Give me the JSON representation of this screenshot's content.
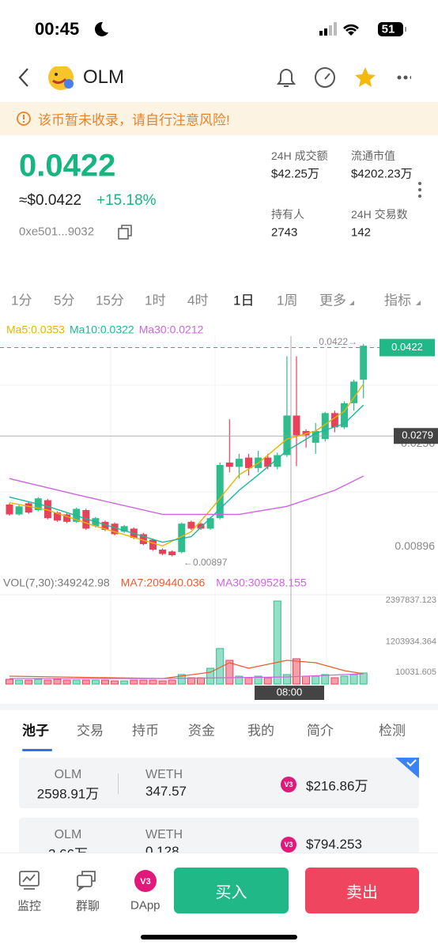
{
  "status": {
    "time": "00:45",
    "battery": "51"
  },
  "header": {
    "name": "OLM"
  },
  "warning": "该币暂未收录，请自行注意风险!",
  "price": {
    "value": "0.0422",
    "usd": "≈$0.0422",
    "change": "+15.18%",
    "address": "0xe501...9032"
  },
  "stats": [
    {
      "label": "24H 成交额",
      "value": "$42.25万"
    },
    {
      "label": "流通市值",
      "value": "$4202.23万"
    },
    {
      "label": "持有人",
      "value": "2743"
    },
    {
      "label": "24H 交易数",
      "value": "142"
    }
  ],
  "intervals": [
    "1分",
    "5分",
    "15分",
    "1时",
    "4时",
    "1日",
    "1周",
    "更多",
    "指标"
  ],
  "chart_data": {
    "type": "candlestick",
    "ma_legend": [
      {
        "text": "Ma5:0.0353",
        "color": "#e8b400"
      },
      {
        "text": "Ma10:0.0322",
        "color": "#19b99a"
      },
      {
        "text": "Ma30:0.0212",
        "color": "#cc66dd"
      }
    ],
    "up_color": "#2fbd8d",
    "down_color": "#e8425a",
    "ylim": [
      0.0063,
      0.0447
    ],
    "yticks": [
      0.0256,
      0.00896
    ],
    "current_price": 0.0422,
    "cross_price": 0.0279,
    "high_annotation": "0.0422→",
    "low_annotation": "←0.00897",
    "candles": [
      [
        0.0168,
        0.0152,
        0.017,
        0.015
      ],
      [
        0.0152,
        0.0165,
        0.0167,
        0.015
      ],
      [
        0.017,
        0.0155,
        0.0172,
        0.0153
      ],
      [
        0.0159,
        0.0178,
        0.018,
        0.0157
      ],
      [
        0.0175,
        0.0146,
        0.0177,
        0.0144
      ],
      [
        0.0155,
        0.0142,
        0.0157,
        0.014
      ],
      [
        0.0152,
        0.014,
        0.0154,
        0.0138
      ],
      [
        0.014,
        0.0161,
        0.0163,
        0.0138
      ],
      [
        0.0159,
        0.0129,
        0.0161,
        0.0127
      ],
      [
        0.0133,
        0.0146,
        0.0148,
        0.0131
      ],
      [
        0.014,
        0.0127,
        0.0142,
        0.0125
      ],
      [
        0.0137,
        0.012,
        0.0139,
        0.0118
      ],
      [
        0.0124,
        0.0133,
        0.0135,
        0.0122
      ],
      [
        0.0129,
        0.0114,
        0.0131,
        0.0112
      ],
      [
        0.012,
        0.0104,
        0.0122,
        0.0102
      ],
      [
        0.0111,
        0.0095,
        0.0113,
        0.0093
      ],
      [
        0.0095,
        0.0088,
        0.0097,
        0.0086
      ],
      [
        0.0092,
        0.0086,
        0.0094,
        0.0084
      ],
      [
        0.0091,
        0.0137,
        0.0139,
        0.0089
      ],
      [
        0.014,
        0.0129,
        0.0142,
        0.0127
      ],
      [
        0.0137,
        0.0129,
        0.0139,
        0.0127
      ],
      [
        0.0129,
        0.0146,
        0.0148,
        0.0127
      ],
      [
        0.0146,
        0.0232,
        0.0236,
        0.0144
      ],
      [
        0.0236,
        0.0229,
        0.0306,
        0.022
      ],
      [
        0.0229,
        0.0242,
        0.025,
        0.021
      ],
      [
        0.0244,
        0.0227,
        0.025,
        0.0215
      ],
      [
        0.0227,
        0.0244,
        0.0255,
        0.022
      ],
      [
        0.0244,
        0.0229,
        0.025,
        0.0225
      ],
      [
        0.0229,
        0.0248,
        0.0252,
        0.0225
      ],
      [
        0.0248,
        0.0312,
        0.0408,
        0.0245
      ],
      [
        0.0312,
        0.028,
        0.0408,
        0.023
      ],
      [
        0.0287,
        0.028,
        0.029,
        0.026
      ],
      [
        0.0268,
        0.0287,
        0.03,
        0.025
      ],
      [
        0.0274,
        0.0316,
        0.0318,
        0.027
      ],
      [
        0.0316,
        0.0293,
        0.032,
        0.0285
      ],
      [
        0.0293,
        0.0332,
        0.0335,
        0.029
      ],
      [
        0.0332,
        0.0367,
        0.037,
        0.032
      ],
      [
        0.037,
        0.0425,
        0.0428,
        0.034
      ]
    ],
    "ma_lines": [
      {
        "color": "#e8b400",
        "x": [
          0,
          4,
          9,
          16,
          19,
          21,
          24,
          26,
          29,
          32,
          35,
          37
        ],
        "values": [
          0.0171,
          0.0159,
          0.0133,
          0.0101,
          0.0124,
          0.0159,
          0.0216,
          0.0235,
          0.0274,
          0.0287,
          0.0319,
          0.0363
        ]
      },
      {
        "color": "#19b99a",
        "x": [
          0,
          4,
          9,
          16,
          19,
          21,
          24,
          26,
          29,
          32,
          35,
          37
        ],
        "values": [
          0.018,
          0.0165,
          0.014,
          0.0107,
          0.0116,
          0.0146,
          0.0191,
          0.0216,
          0.0255,
          0.0283,
          0.0299,
          0.0329
        ]
      },
      {
        "color": "#cc66dd",
        "x": [
          0,
          7,
          16,
          24,
          29,
          34,
          37
        ],
        "values": [
          0.021,
          0.0184,
          0.0152,
          0.0152,
          0.0165,
          0.0191,
          0.0214
        ]
      }
    ],
    "vol_legend": [
      {
        "text": "VOL(7,30):349242.98",
        "color": "#777777"
      },
      {
        "text": "MA7:209440.036",
        "color": "#e85c2e"
      },
      {
        "text": "MA30:309528.155",
        "color": "#cc66dd"
      }
    ],
    "vol_ylim": [
      0,
      2397837.123
    ],
    "vol_ticks": [
      2397837.123,
      1203934.364,
      10031.605
    ],
    "volumes": [
      135726,
      113105,
      113105,
      135726,
      113105,
      135726,
      113105,
      113105,
      113105,
      113105,
      113105,
      90484,
      90484,
      113105,
      113105,
      113105,
      90484,
      113105,
      271452,
      180968,
      180968,
      452420,
      1017945,
      678630,
      226210,
      180968,
      226210,
      180968,
      2375205,
      271452,
      723872,
      226210,
      226210,
      271452,
      180968,
      226210,
      271452,
      316694
    ],
    "vol_ma_lines": [
      {
        "color": "#e85c2e",
        "x": [
          0,
          16,
          21,
          23,
          25,
          29,
          32,
          35,
          37
        ],
        "values": [
          226210,
          158347,
          339315,
          610767,
          452420,
          678630,
          610767,
          384557,
          294073
        ]
      },
      {
        "color": "#cc66dd",
        "x": [
          0,
          16,
          29,
          37
        ],
        "values": [
          158347,
          158347,
          203589,
          294073
        ]
      }
    ],
    "time_label": "08:00"
  },
  "tabs": [
    "池子",
    "交易",
    "持币",
    "资金",
    "我的",
    "简介",
    "检测"
  ],
  "pools": [
    {
      "token": "OLM",
      "amount": "2598.91万",
      "pair": "WETH",
      "pair_amount": "347.57",
      "badge": "V3",
      "value": "$216.86万"
    },
    {
      "token": "OLM",
      "amount": "3.66万",
      "pair": "WETH",
      "pair_amount": "0.128",
      "badge": "V3",
      "value": "$794.253"
    }
  ],
  "nav": [
    "监控",
    "群聊",
    "DApp"
  ],
  "buy": "买入",
  "sell": "卖出"
}
